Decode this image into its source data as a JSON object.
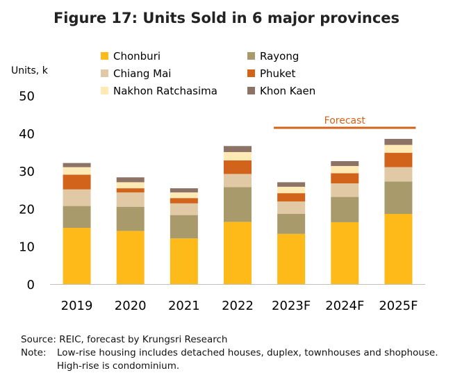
{
  "title": "Figure 17: Units Sold in 6 major provinces",
  "source": "Source: REIC, forecast by Krungsri Research",
  "note_label": "Note:",
  "note_line1": "Low-rise housing  includes detached houses, duplex, townhouses and shophouse.",
  "note_line2": "High-rise is condominium.",
  "chart_data": {
    "type": "bar",
    "stacked": true,
    "ylabel": "Units, k",
    "ylim": [
      0,
      50
    ],
    "yticks": [
      0,
      10,
      20,
      30,
      40,
      50
    ],
    "categories": [
      "2019",
      "2020",
      "2021",
      "2022",
      "2023F",
      "2024F",
      "2025F"
    ],
    "series": [
      {
        "name": "Chonburi",
        "color": "#FDBA18",
        "values": [
          14.9,
          14.1,
          12.1,
          16.5,
          13.3,
          16.4,
          18.6
        ]
      },
      {
        "name": "Rayong",
        "color": "#A89A6B",
        "values": [
          5.8,
          6.4,
          6.2,
          9.2,
          5.3,
          6.7,
          8.6
        ]
      },
      {
        "name": "Chiang Mai",
        "color": "#E1C9A5",
        "values": [
          4.4,
          3.8,
          3.1,
          3.5,
          3.3,
          3.6,
          3.8
        ]
      },
      {
        "name": "Phuket",
        "color": "#D1631B",
        "values": [
          3.9,
          1.1,
          1.4,
          3.6,
          2.2,
          2.7,
          3.8
        ]
      },
      {
        "name": "Nakhon Ratchasima",
        "color": "#FFE9B5",
        "values": [
          2.0,
          1.6,
          1.5,
          2.2,
          1.7,
          1.9,
          2.1
        ]
      },
      {
        "name": "Khon Kaen",
        "color": "#8C7366",
        "values": [
          1.1,
          1.3,
          1.1,
          1.6,
          1.2,
          1.3,
          1.6
        ]
      }
    ],
    "annotation": {
      "text": "Forecast",
      "color": "#D1631B",
      "range": [
        "2023F",
        "2025F"
      ]
    },
    "legend": "top",
    "grid": false
  }
}
